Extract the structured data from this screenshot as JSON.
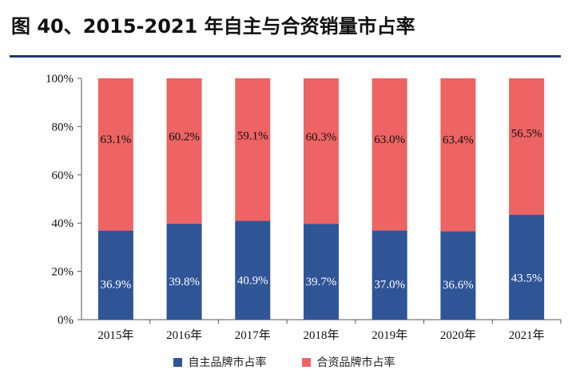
{
  "title": "图 40、2015-2021 年自主与合资销量市占率",
  "colors": {
    "domestic": "#2f5597",
    "joint": "#ee6363",
    "rule": "#1f3a6e"
  },
  "chart_data": {
    "type": "bar",
    "stacked": true,
    "categories": [
      "2015年",
      "2016年",
      "2017年",
      "2018年",
      "2019年",
      "2020年",
      "2021年"
    ],
    "series": [
      {
        "name": "自主品牌市占率",
        "values": [
          36.9,
          39.8,
          40.9,
          39.7,
          37.0,
          36.6,
          43.5
        ],
        "labels": [
          "36.9%",
          "39.8%",
          "40.9%",
          "39.7%",
          "37.0%",
          "36.6%",
          "43.5%"
        ]
      },
      {
        "name": "合资品牌市占率",
        "values": [
          63.1,
          60.2,
          59.1,
          60.3,
          63.0,
          63.4,
          56.5
        ],
        "labels": [
          "63.1%",
          "60.2%",
          "59.1%",
          "60.3%",
          "63.0%",
          "63.4%",
          "56.5%"
        ]
      }
    ],
    "yticks": [
      "0%",
      "20%",
      "40%",
      "60%",
      "80%",
      "100%"
    ],
    "ylim": [
      0,
      100
    ],
    "grid": false,
    "legend": "bottom"
  }
}
